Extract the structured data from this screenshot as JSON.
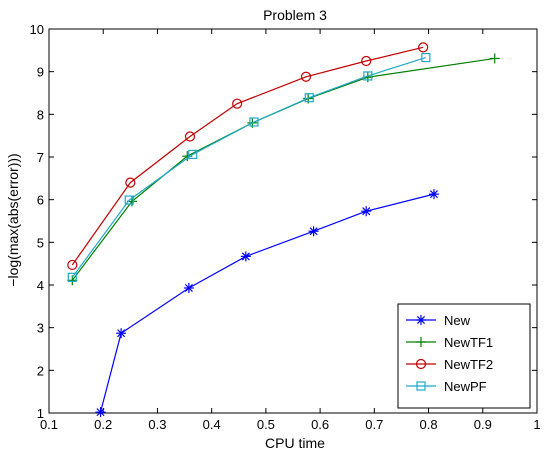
{
  "chart_data": {
    "type": "line",
    "title": "Problem 3",
    "xlabel": "CPU time",
    "ylabel": "−log(max(abs(error)))",
    "xlim": [
      0.1,
      1
    ],
    "ylim": [
      1,
      10
    ],
    "xticks": [
      "0.1",
      "0.2",
      "0.3",
      "0.4",
      "0.5",
      "0.6",
      "0.7",
      "0.8",
      "0.9",
      "1"
    ],
    "yticks": [
      "1",
      "2",
      "3",
      "4",
      "5",
      "6",
      "7",
      "8",
      "9",
      "10"
    ],
    "grid": false,
    "legend_position": "bottom-right",
    "series": [
      {
        "name": "New",
        "color": "#0000ff",
        "marker": "asterisk",
        "x": [
          0.195,
          0.233,
          0.358,
          0.463,
          0.588,
          0.685,
          0.81
        ],
        "y": [
          1.02,
          2.87,
          3.93,
          4.67,
          5.26,
          5.73,
          6.13
        ]
      },
      {
        "name": "NewTF1",
        "color": "#008000",
        "marker": "plus",
        "x": [
          0.143,
          0.253,
          0.355,
          0.475,
          0.578,
          0.688,
          0.922
        ],
        "y": [
          4.11,
          5.96,
          7.02,
          7.8,
          8.37,
          8.87,
          9.31
        ]
      },
      {
        "name": "NewTF2",
        "color": "#c00000",
        "marker": "circle",
        "x": [
          0.143,
          0.25,
          0.36,
          0.447,
          0.574,
          0.685,
          0.79
        ],
        "y": [
          4.47,
          6.4,
          7.48,
          8.25,
          8.88,
          9.25,
          9.57
        ]
      },
      {
        "name": "NewPF",
        "color": "#20a8c8",
        "marker": "square",
        "x": [
          0.143,
          0.248,
          0.365,
          0.478,
          0.58,
          0.688,
          0.795
        ],
        "y": [
          4.18,
          5.99,
          7.06,
          7.82,
          8.39,
          8.9,
          9.33
        ]
      }
    ]
  }
}
